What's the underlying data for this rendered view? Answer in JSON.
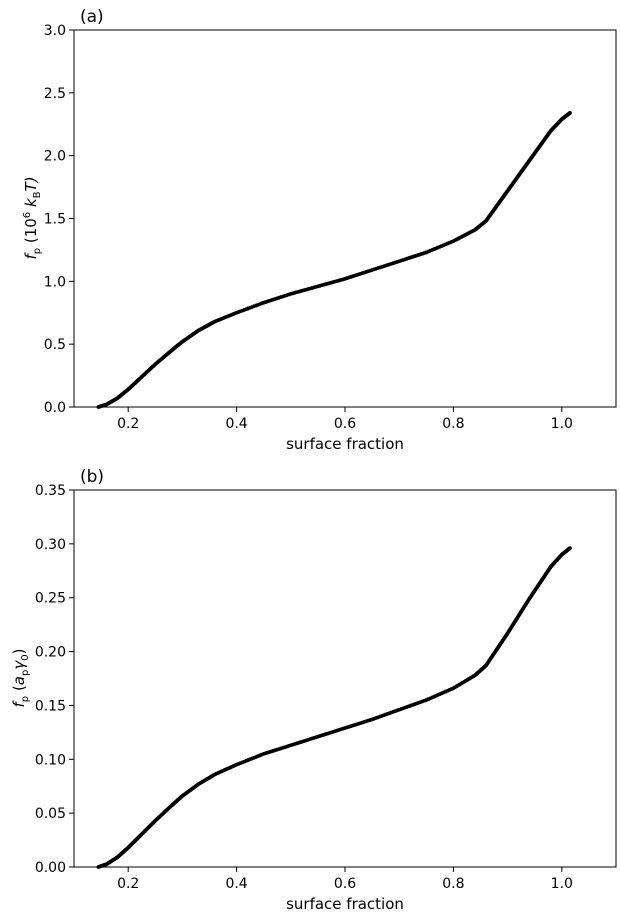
{
  "chart_data": [
    {
      "type": "scatter",
      "panel_label": "(a)",
      "xlabel": "surface fraction",
      "ylabel": {
        "main": "f",
        "sub": "p",
        "unit_prefix": " (10",
        "exponent": "6",
        "unit_main": " k",
        "unit_sub": "B",
        "unit_tail": "T)"
      },
      "xlim": [
        0.1,
        1.1
      ],
      "ylim": [
        0.0,
        3.0
      ],
      "x_ticks": [
        0.2,
        0.4,
        0.6,
        0.8,
        1.0
      ],
      "x_tick_labels": [
        "0.2",
        "0.4",
        "0.6",
        "0.8",
        "1.0"
      ],
      "y_ticks": [
        0.0,
        0.5,
        1.0,
        1.5,
        2.0,
        2.5,
        3.0
      ],
      "y_tick_labels": [
        "0.0",
        "0.5",
        "1.0",
        "1.5",
        "2.0",
        "2.5",
        "3.0"
      ],
      "grid": false,
      "marker_color": "#000000",
      "x": [
        0.145,
        0.16,
        0.18,
        0.2,
        0.22,
        0.25,
        0.28,
        0.3,
        0.33,
        0.36,
        0.4,
        0.45,
        0.5,
        0.55,
        0.6,
        0.65,
        0.7,
        0.75,
        0.8,
        0.84,
        0.86,
        0.88,
        0.9,
        0.92,
        0.94,
        0.96,
        0.98,
        1.0,
        1.015
      ],
      "y": [
        0.0,
        0.02,
        0.07,
        0.14,
        0.22,
        0.34,
        0.45,
        0.52,
        0.61,
        0.68,
        0.75,
        0.83,
        0.9,
        0.96,
        1.02,
        1.09,
        1.16,
        1.23,
        1.32,
        1.41,
        1.48,
        1.6,
        1.72,
        1.84,
        1.96,
        2.08,
        2.2,
        2.29,
        2.34
      ]
    },
    {
      "type": "scatter",
      "panel_label": "(b)",
      "xlabel": "surface fraction",
      "ylabel": {
        "main": "f",
        "sub": "p",
        "paren_open": " (",
        "a_main": "a",
        "a_sub": "p",
        "gamma_main": "γ",
        "gamma_sub": "0",
        "paren_close": ")"
      },
      "xlim": [
        0.1,
        1.1
      ],
      "ylim": [
        0.0,
        0.35
      ],
      "x_ticks": [
        0.2,
        0.4,
        0.6,
        0.8,
        1.0
      ],
      "x_tick_labels": [
        "0.2",
        "0.4",
        "0.6",
        "0.8",
        "1.0"
      ],
      "y_ticks": [
        0.0,
        0.05,
        0.1,
        0.15,
        0.2,
        0.25,
        0.3,
        0.35
      ],
      "y_tick_labels": [
        "0.00",
        "0.05",
        "0.10",
        "0.15",
        "0.20",
        "0.25",
        "0.30",
        "0.35"
      ],
      "grid": false,
      "marker_color": "#000000",
      "x": [
        0.145,
        0.16,
        0.18,
        0.2,
        0.22,
        0.25,
        0.28,
        0.3,
        0.33,
        0.36,
        0.4,
        0.45,
        0.5,
        0.55,
        0.6,
        0.65,
        0.7,
        0.75,
        0.8,
        0.84,
        0.86,
        0.88,
        0.9,
        0.92,
        0.94,
        0.96,
        0.98,
        1.0,
        1.015
      ],
      "y": [
        0.0,
        0.0025,
        0.009,
        0.018,
        0.028,
        0.043,
        0.057,
        0.066,
        0.077,
        0.086,
        0.095,
        0.105,
        0.113,
        0.121,
        0.129,
        0.137,
        0.146,
        0.155,
        0.166,
        0.178,
        0.187,
        0.202,
        0.217,
        0.233,
        0.249,
        0.264,
        0.279,
        0.29,
        0.296
      ]
    }
  ]
}
